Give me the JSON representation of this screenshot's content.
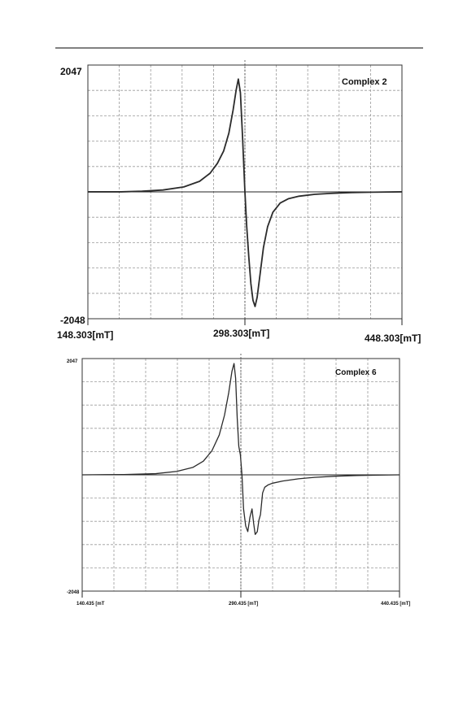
{
  "chart_data": [
    {
      "type": "line",
      "annotation": "Complex  2",
      "x_tick_labels": [
        "148.303[mT]",
        "298.303[mT]",
        "448.303[mT]"
      ],
      "y_tick_labels": [
        "2047",
        "-2048"
      ],
      "xlim": [
        148.303,
        448.303
      ],
      "ylim": [
        -2048,
        2047
      ],
      "grid": true,
      "series": [
        {
          "x": [
            148.303,
            180,
            200,
            220,
            240,
            255,
            265,
            272,
            278,
            283,
            287,
            290,
            292,
            294,
            296,
            298.303,
            300,
            302,
            304,
            306,
            308,
            310,
            313,
            316,
            320,
            325,
            332,
            340,
            350,
            365,
            380,
            400,
            420,
            448.303
          ],
          "y": [
            0,
            0,
            10,
            30,
            80,
            170,
            300,
            460,
            660,
            950,
            1320,
            1650,
            1820,
            1600,
            900,
            0,
            -550,
            -1050,
            -1480,
            -1750,
            -1850,
            -1700,
            -1300,
            -900,
            -560,
            -330,
            -180,
            -110,
            -70,
            -40,
            -25,
            -12,
            -5,
            0
          ]
        }
      ]
    },
    {
      "type": "line",
      "annotation": "Complex  6",
      "x_tick_labels": [
        "140.435 [mT",
        "290.435 [mT]",
        "440.435 [mT]"
      ],
      "y_tick_labels": [
        "2047",
        "-2048"
      ],
      "xlim": [
        140.435,
        440.435
      ],
      "ylim": [
        -2048,
        2047
      ],
      "grid": true,
      "series": [
        {
          "x": [
            140.435,
            180,
            210,
            230,
            245,
            255,
            263,
            270,
            275,
            279,
            282,
            284,
            285.5,
            287,
            288.5,
            290,
            291.5,
            293,
            295,
            297,
            299,
            301,
            302.5,
            304,
            306,
            307.5,
            309,
            311,
            313,
            316,
            320,
            330,
            345,
            360,
            380,
            400,
            420,
            440.435
          ],
          "y": [
            0,
            5,
            20,
            60,
            130,
            240,
            420,
            700,
            1050,
            1450,
            1820,
            1960,
            1700,
            1000,
            500,
            350,
            0,
            -600,
            -900,
            -1000,
            -750,
            -600,
            -850,
            -1050,
            -1000,
            -800,
            -700,
            -320,
            -220,
            -180,
            -150,
            -110,
            -70,
            -45,
            -25,
            -12,
            -5,
            0
          ]
        }
      ]
    }
  ]
}
